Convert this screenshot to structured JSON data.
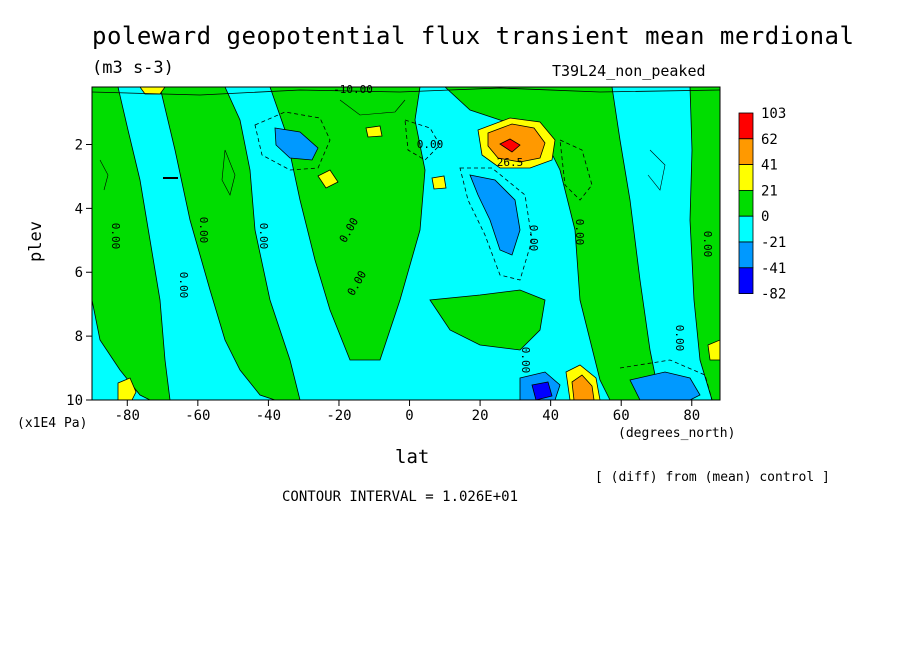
{
  "chart_data": {
    "type": "heatmap",
    "title": "poleward geopotential flux transient mean merdional",
    "units": "(m3 s-3)",
    "run_label": "T39L24_non_peaked",
    "xlabel": "lat",
    "xunits": "(degrees_north)",
    "ylabel": "plev",
    "yunits": "(x1E4 Pa)",
    "x_ticks": [
      "-80",
      "-60",
      "-40",
      "-20",
      "0",
      "20",
      "40",
      "60",
      "80"
    ],
    "y_ticks": [
      "2",
      "4",
      "6",
      "8",
      "10"
    ],
    "xlim": [
      -90,
      88
    ],
    "ylim": [
      10,
      0.2
    ],
    "note": "[ (diff) from (mean) control ]",
    "contour_interval": "CONTOUR INTERVAL = 1.026E+01",
    "legend_levels": [
      "103",
      "62",
      "41",
      "21",
      "0",
      "-21",
      "-41",
      "-82"
    ],
    "legend_colors": [
      "#ff0000",
      "#ff9900",
      "#ffff00",
      "#00dd00",
      "#00ffff",
      "#0099ff",
      "#0000ff"
    ],
    "contour_labels": [
      "-10.00",
      "0.00",
      "0.00",
      "0.00",
      "0.00",
      "0.00",
      "0.00",
      "0.00",
      "0.00",
      "0.00",
      "0.00",
      "0.00",
      "0.00",
      "26.5"
    ],
    "regions": [
      {
        "value": 0,
        "lat": [
          -90,
          -78
        ],
        "plev": [
          0.2,
          10
        ]
      },
      {
        "value": 5,
        "lat": [
          -78,
          -60
        ],
        "plev": [
          0.2,
          10
        ]
      },
      {
        "value": -8,
        "lat": [
          -60,
          -42
        ],
        "plev": [
          0.2,
          10
        ]
      },
      {
        "value": 5,
        "lat": [
          -42,
          -10
        ],
        "plev": [
          0.2,
          10
        ]
      },
      {
        "value": -8,
        "lat": [
          -10,
          20
        ],
        "plev": [
          0.2,
          10
        ]
      },
      {
        "value": 5,
        "lat": [
          20,
          42
        ],
        "plev": [
          0.2,
          10
        ]
      },
      {
        "value": -8,
        "lat": [
          42,
          75
        ],
        "plev": [
          0.2,
          10
        ]
      },
      {
        "value": 5,
        "lat": [
          75,
          88
        ],
        "plev": [
          0.2,
          10
        ]
      }
    ],
    "extremes": [
      {
        "label": "max",
        "value": 103,
        "lat": 27,
        "plev": 2.0
      },
      {
        "label": "min",
        "value": -45,
        "lat": 30,
        "plev": 4.2
      },
      {
        "label": "min",
        "value": -45,
        "lat": -35,
        "plev": 1.9
      },
      {
        "label": "min",
        "value": -45,
        "lat": 75,
        "plev": 9.6
      },
      {
        "label": "max",
        "value": 60,
        "lat": 48,
        "plev": 9.8
      }
    ]
  }
}
